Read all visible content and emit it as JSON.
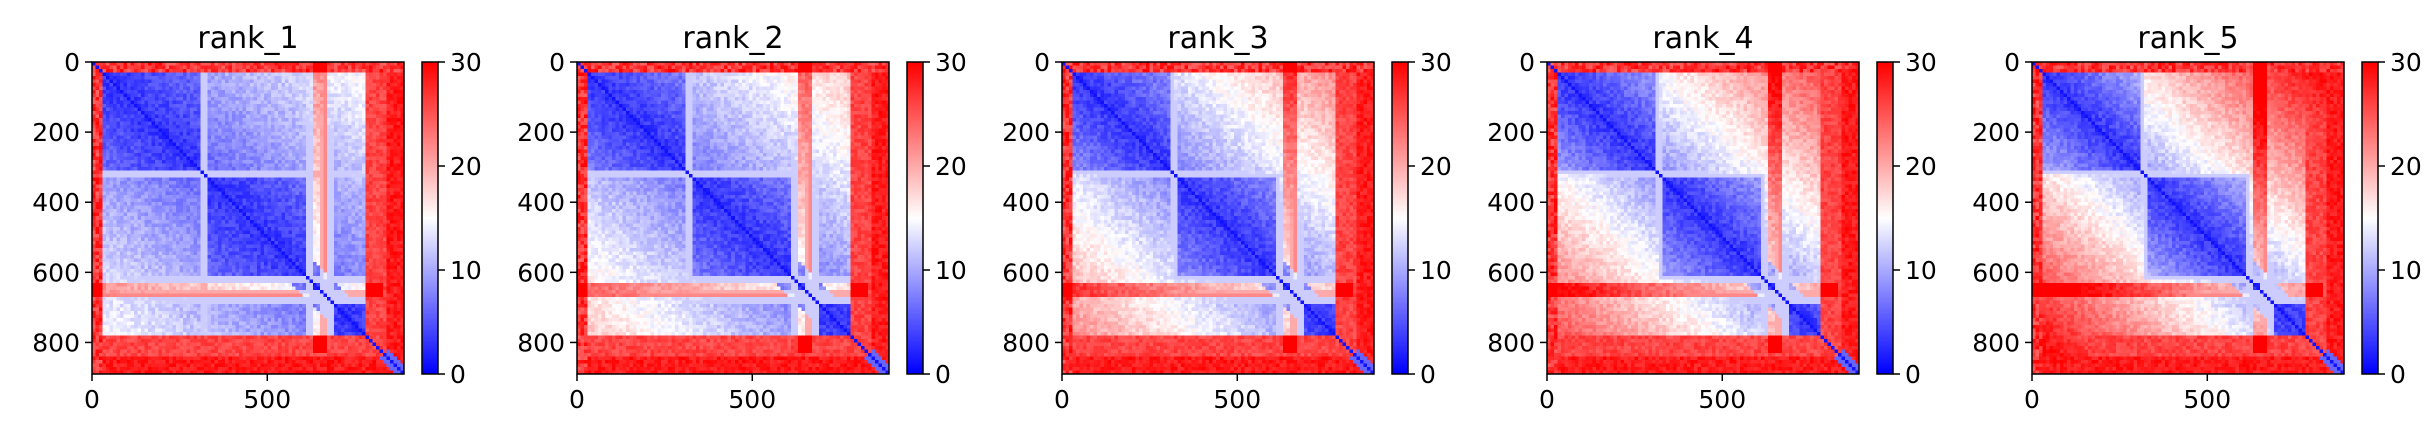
{
  "chart_data": [
    {
      "type": "heatmap",
      "title": "rank_1",
      "xlim": [
        0,
        890
      ],
      "ylim": [
        890,
        0
      ],
      "x_ticks": [
        "0",
        "500"
      ],
      "y_ticks": [
        "0",
        "200",
        "400",
        "600",
        "800"
      ],
      "colorbar": {
        "min": 0,
        "max": 30,
        "ticks": [
          "0",
          "10",
          "20",
          "30"
        ],
        "colormap": "bwr"
      },
      "features": {
        "blocks": [
          [
            30,
            320
          ],
          [
            320,
            620
          ],
          [
            620,
            680
          ],
          [
            680,
            790
          ],
          [
            790,
            830
          ],
          [
            830,
            890
          ]
        ],
        "bright_lines": [
          320,
          620,
          660,
          680
        ]
      }
    },
    {
      "type": "heatmap",
      "title": "rank_2",
      "xlim": [
        0,
        890
      ],
      "ylim": [
        890,
        0
      ],
      "x_ticks": [
        "0",
        "500"
      ],
      "y_ticks": [
        "0",
        "200",
        "400",
        "600",
        "800"
      ],
      "colorbar": {
        "min": 0,
        "max": 30,
        "ticks": [
          "0",
          "10",
          "20",
          "30"
        ],
        "colormap": "bwr"
      },
      "features": {
        "blocks": [
          [
            30,
            320
          ],
          [
            320,
            620
          ],
          [
            620,
            680
          ],
          [
            680,
            790
          ],
          [
            790,
            830
          ],
          [
            830,
            890
          ]
        ],
        "bright_lines": [
          320,
          620,
          660,
          680
        ]
      }
    },
    {
      "type": "heatmap",
      "title": "rank_3",
      "xlim": [
        0,
        890
      ],
      "ylim": [
        890,
        0
      ],
      "x_ticks": [
        "0",
        "500"
      ],
      "y_ticks": [
        "0",
        "200",
        "400",
        "600",
        "800"
      ],
      "colorbar": {
        "min": 0,
        "max": 30,
        "ticks": [
          "0",
          "10",
          "20",
          "30"
        ],
        "colormap": "bwr"
      },
      "features": {
        "blocks": [
          [
            30,
            320
          ],
          [
            320,
            620
          ],
          [
            620,
            680
          ],
          [
            680,
            790
          ],
          [
            790,
            830
          ],
          [
            830,
            890
          ]
        ],
        "bright_lines": [
          320,
          620,
          660,
          680
        ]
      }
    },
    {
      "type": "heatmap",
      "title": "rank_4",
      "xlim": [
        0,
        890
      ],
      "ylim": [
        890,
        0
      ],
      "x_ticks": [
        "0",
        "500"
      ],
      "y_ticks": [
        "0",
        "200",
        "400",
        "600",
        "800"
      ],
      "colorbar": {
        "min": 0,
        "max": 30,
        "ticks": [
          "0",
          "10",
          "20",
          "30"
        ],
        "colormap": "bwr"
      },
      "features": {
        "blocks": [
          [
            30,
            320
          ],
          [
            320,
            620
          ],
          [
            620,
            680
          ],
          [
            680,
            790
          ],
          [
            790,
            830
          ],
          [
            830,
            890
          ]
        ],
        "bright_lines": [
          320,
          620,
          660,
          680
        ]
      }
    },
    {
      "type": "heatmap",
      "title": "rank_5",
      "xlim": [
        0,
        890
      ],
      "ylim": [
        890,
        0
      ],
      "x_ticks": [
        "0",
        "500"
      ],
      "y_ticks": [
        "0",
        "200",
        "400",
        "600",
        "800"
      ],
      "colorbar": {
        "min": 0,
        "max": 30,
        "ticks": [
          "0",
          "10",
          "20",
          "30"
        ],
        "colormap": "bwr"
      },
      "features": {
        "blocks": [
          [
            30,
            320
          ],
          [
            320,
            620
          ],
          [
            620,
            680
          ],
          [
            680,
            790
          ],
          [
            790,
            830
          ],
          [
            830,
            890
          ]
        ],
        "bright_lines": [
          320,
          620,
          660,
          680
        ]
      }
    }
  ]
}
